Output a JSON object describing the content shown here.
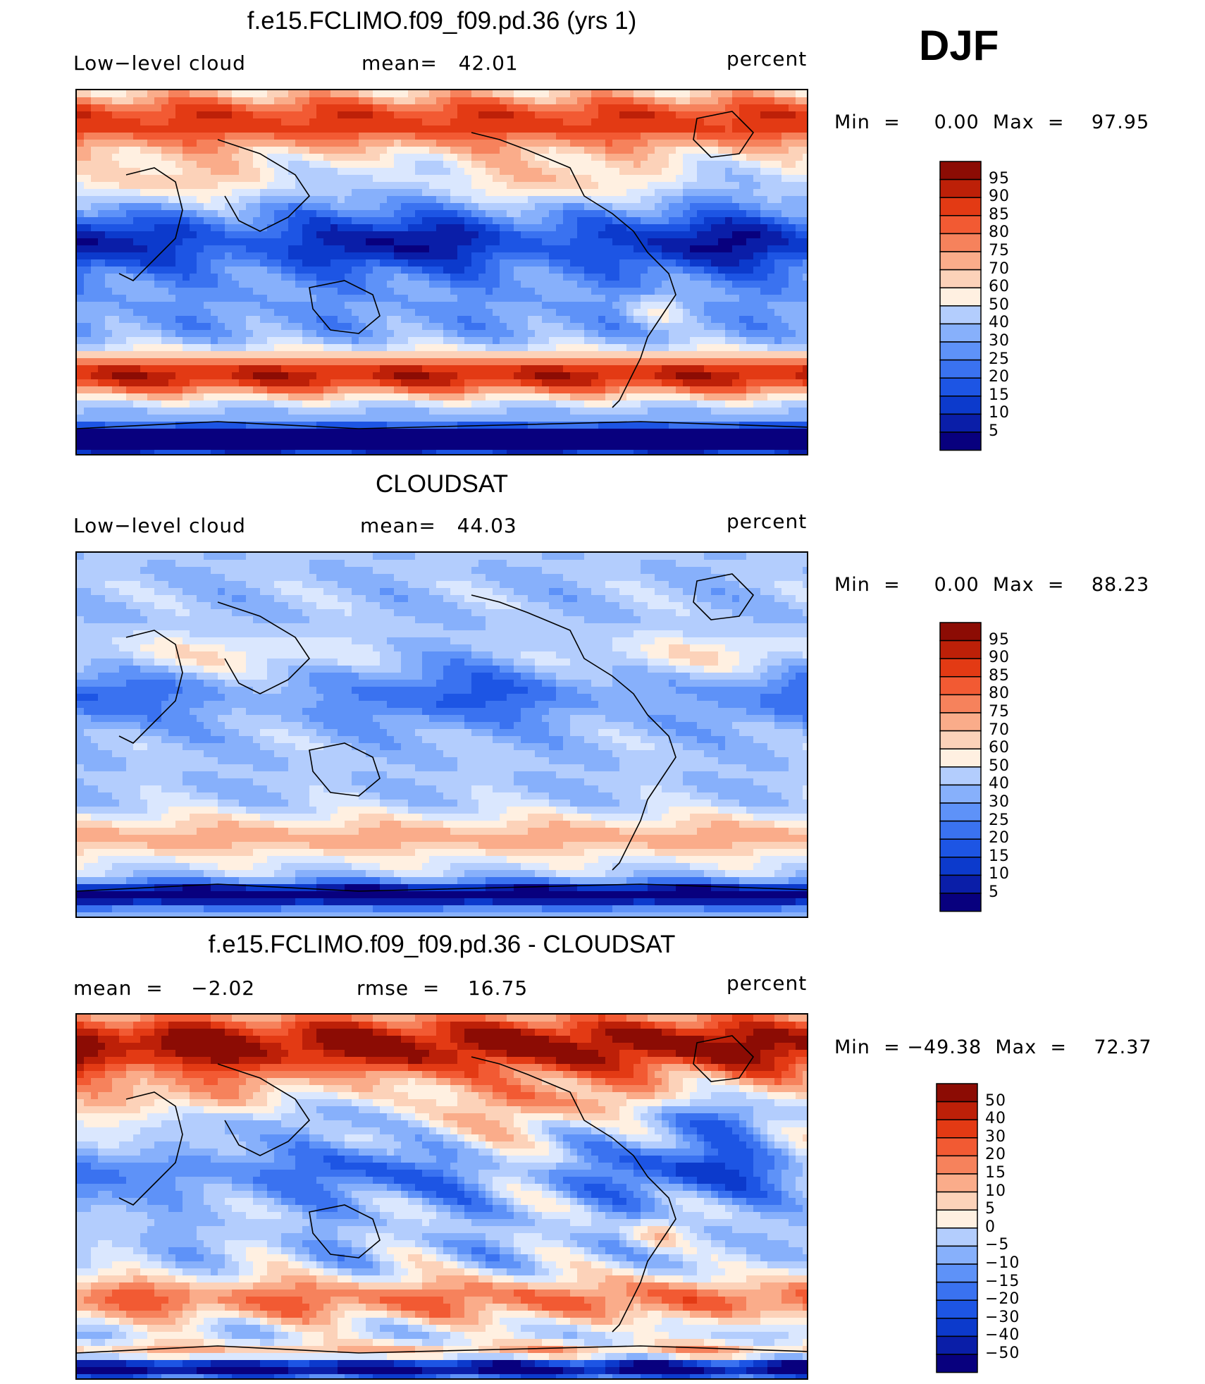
{
  "season": "DJF",
  "colors": {
    "seq": [
      "#08007e",
      "#0a1ea8",
      "#0c3acc",
      "#1d55e4",
      "#3a72f0",
      "#5e92f8",
      "#87b0fb",
      "#b3cdfd",
      "#dae7fe",
      "#fff0e1",
      "#fcd2b9",
      "#faac8a",
      "#f6825c",
      "#f25a33",
      "#e33a14",
      "#bd2008",
      "#8c0c04"
    ],
    "div": [
      "#08007e",
      "#0a1ea8",
      "#0c3acc",
      "#1d55e4",
      "#3a72f0",
      "#5e92f8",
      "#87b0fb",
      "#b3cdfd",
      "#dae7fe",
      "#fff0e1",
      "#fcd2b9",
      "#faac8a",
      "#f6825c",
      "#f25a33",
      "#e33a14",
      "#bd2008",
      "#8c0c04"
    ]
  },
  "chart_data": [
    {
      "type": "heatmap",
      "title": "f.e15.FCLIMO.f09_f09.pd.36 (yrs 1)",
      "left_label": "Low−level cloud",
      "center_label": "mean=   42.01",
      "units": "percent",
      "min_label": "Min  =     0.00",
      "max_label": "Max  =    97.95",
      "colorbar_levels": [
        "95",
        "90",
        "85",
        "80",
        "75",
        "70",
        "60",
        "50",
        "40",
        "30",
        "25",
        "20",
        "15",
        "10",
        "5"
      ],
      "mean": 42.01,
      "min": 0.0,
      "max": 97.95
    },
    {
      "type": "heatmap",
      "title": "CLOUDSAT",
      "left_label": "Low−level cloud",
      "center_label": "mean=   44.03",
      "units": "percent",
      "min_label": "Min  =     0.00",
      "max_label": "Max  =    88.23",
      "colorbar_levels": [
        "95",
        "90",
        "85",
        "80",
        "75",
        "70",
        "60",
        "50",
        "40",
        "30",
        "25",
        "20",
        "15",
        "10",
        "5"
      ],
      "mean": 44.03,
      "min": 0.0,
      "max": 88.23
    },
    {
      "type": "heatmap",
      "title": "f.e15.FCLIMO.f09_f09.pd.36 - CLOUDSAT",
      "left_label": "mean  =    −2.02",
      "center_label": "rmse  =    16.75",
      "units": "percent",
      "min_label": "Min  = −49.38",
      "max_label": "Max  =    72.37",
      "colorbar_levels": [
        "50",
        "40",
        "30",
        "20",
        "15",
        "10",
        "5",
        "0",
        "−5",
        "−10",
        "−15",
        "−20",
        "−30",
        "−40",
        "−50"
      ],
      "mean": -2.02,
      "rmse": 16.75,
      "min": -49.38,
      "max": 72.37
    }
  ]
}
